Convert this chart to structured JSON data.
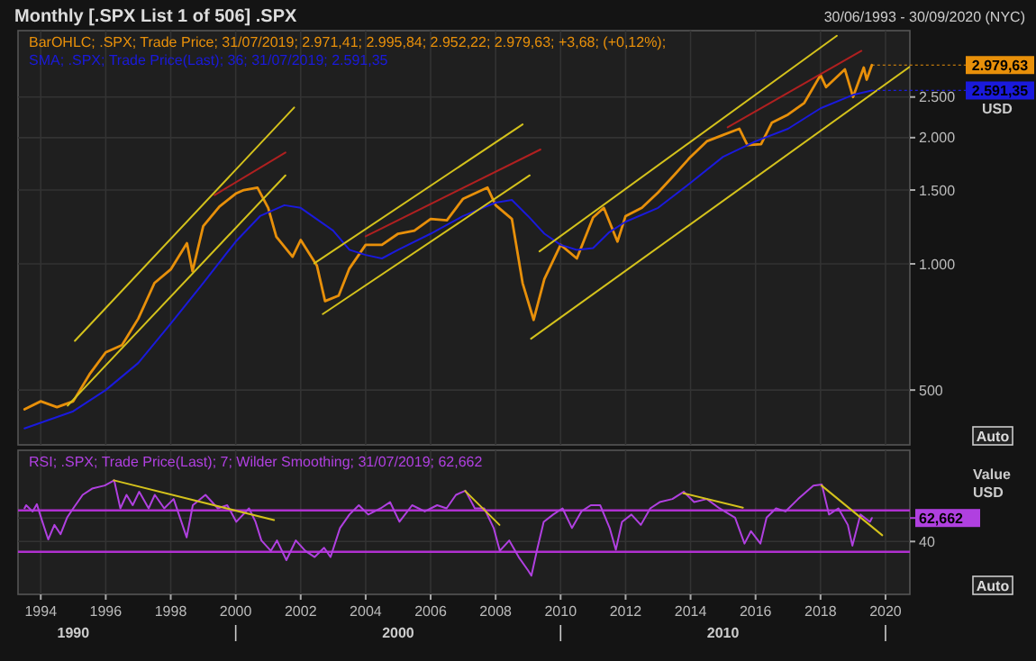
{
  "chart_data": [
    {
      "type": "line",
      "title": "Monthly [.SPX List 1 of 506] .SPX",
      "subtitle": "30/06/1993 - 30/09/2020 (NYC)",
      "log": true,
      "grid": true,
      "legend": "top left",
      "tick_labels": "y",
      "xlim": [
        1993.3,
        2020.75
      ],
      "xticks": [
        1994,
        1996,
        1998,
        2000,
        2002,
        2004,
        2006,
        2008,
        2010,
        2012,
        2014,
        2016,
        2018,
        2020
      ],
      "ylim": [
        370,
        3600
      ],
      "yticks": [
        500,
        {
          "value": 1000,
          "label": "1.000"
        },
        {
          "value": 1500,
          "label": "1.500"
        },
        {
          "value": 2000,
          "label": "2.000"
        },
        {
          "value": 2500,
          "label": "2.500"
        }
      ],
      "series": [
        {
          "name": "BarOHLC; .SPX; Trade Price; 31/07/2019; 2.971,41; 2.995,84; 2.952,22; 2.979,63; +3,68; (+0,12%);",
          "color": "#e8900a",
          "x": [
            1993.5,
            1994,
            1994.5,
            1995,
            1995.5,
            1996,
            1996.5,
            1997,
            1997.5,
            1998,
            1998.5,
            1998.67,
            1999,
            1999.5,
            2000,
            2000.25,
            2000.67,
            2001,
            2001.25,
            2001.75,
            2002,
            2002.5,
            2002.75,
            2003.17,
            2003.5,
            2004,
            2004.5,
            2005,
            2005.5,
            2006,
            2006.5,
            2007,
            2007.75,
            2008,
            2008.5,
            2008.83,
            2009.17,
            2009.5,
            2010,
            2010.5,
            2011,
            2011.33,
            2011.75,
            2012,
            2012.5,
            2013,
            2013.5,
            2014,
            2014.5,
            2015,
            2015.5,
            2015.75,
            2016.17,
            2016.5,
            2017,
            2017.5,
            2018,
            2018.17,
            2018.75,
            2019,
            2019.33,
            2019.42,
            2019.58
          ],
          "values": [
            450,
            470,
            455,
            470,
            545,
            615,
            640,
            740,
            900,
            970,
            1120,
            960,
            1230,
            1370,
            1470,
            1500,
            1520,
            1360,
            1160,
            1040,
            1140,
            990,
            815,
            840,
            975,
            1110,
            1110,
            1180,
            1200,
            1280,
            1270,
            1430,
            1520,
            1380,
            1280,
            900,
            735,
            920,
            1110,
            1030,
            1290,
            1360,
            1130,
            1300,
            1360,
            1480,
            1630,
            1800,
            1960,
            2030,
            2100,
            1920,
            1930,
            2170,
            2270,
            2420,
            2820,
            2640,
            2910,
            2500,
            2940,
            2750,
            2979.63
          ]
        },
        {
          "name": "SMA; .SPX; Trade Price(Last);  36; 31/07/2019; 2.591,35",
          "color": "#1a1adc",
          "x": [
            1993.5,
            1995,
            1996,
            1997,
            1998,
            1999,
            2000,
            2000.75,
            2001.5,
            2002,
            2003,
            2003.5,
            2004,
            2004.5,
            2005,
            2006,
            2007,
            2008,
            2008.5,
            2009,
            2009.5,
            2010,
            2010.5,
            2011,
            2011.5,
            2012,
            2013,
            2014,
            2015,
            2016,
            2017,
            2018,
            2019,
            2019.58
          ],
          "values": [
            405,
            445,
            500,
            580,
            720,
            900,
            1130,
            1300,
            1380,
            1360,
            1200,
            1080,
            1050,
            1030,
            1080,
            1180,
            1300,
            1400,
            1420,
            1300,
            1180,
            1110,
            1080,
            1090,
            1190,
            1260,
            1360,
            1560,
            1800,
            1960,
            2100,
            2350,
            2530,
            2591.35
          ]
        },
        {
          "color": "#d4c21c",
          "x": [
            1995.05,
            2001.8
          ],
          "values": [
            655,
            2360
          ]
        },
        {
          "color": "#d4c21c",
          "x": [
            1994.83,
            2001.53
          ],
          "values": [
            459,
            1626
          ]
        },
        {
          "color": "#b02020",
          "x": [
            1999.35,
            2001.53
          ],
          "values": [
            1459,
            1843
          ]
        },
        {
          "color": "#d4c21c",
          "x": [
            2002.42,
            2008.83
          ],
          "values": [
            1003,
            2151
          ]
        },
        {
          "color": "#d4c21c",
          "x": [
            2002.68,
            2009.05
          ],
          "values": [
            759,
            1626
          ]
        },
        {
          "color": "#b02020",
          "x": [
            2004,
            2009.38
          ],
          "values": [
            1163,
            1874
          ]
        },
        {
          "color": "#d4c21c",
          "x": [
            2009.35,
            2018.5
          ],
          "values": [
            1071,
            3500
          ]
        },
        {
          "color": "#d4c21c",
          "x": [
            2009.09,
            2020.74
          ],
          "values": [
            663,
            2950
          ]
        },
        {
          "color": "#b02020",
          "x": [
            2015.14,
            2019.26
          ],
          "values": [
            2117,
            3222
          ]
        }
      ],
      "annotations": [
        {
          "text": "2.979,63",
          "x": 2019.58,
          "y": 2979.63
        },
        {
          "text": "2.591,35",
          "x": 2019.58,
          "y": 2591.35
        },
        "USD",
        "Auto"
      ]
    },
    {
      "type": "line",
      "grid": true,
      "legend": "top left",
      "xlim": [
        1993.3,
        2020.75
      ],
      "xticks": [
        1994,
        1996,
        1998,
        2000,
        2002,
        2004,
        2006,
        2008,
        2010,
        2012,
        2014,
        2016,
        2018,
        2020
      ],
      "x2lim": [
        1988.3,
        2015.75
      ],
      "x2ticks": [
        1990,
        {
          "value": 1995,
          "label": null
        },
        2000,
        {
          "value": 2005,
          "label": null
        },
        2010,
        {
          "value": 2015,
          "label": null
        }
      ],
      "ylim": [
        -11,
        128
      ],
      "yticks": [
        40,
        {
          "value": 62.662,
          "label": "62,662"
        }
      ],
      "series": [
        {
          "name": "RSI; .SPX; Trade Price(Last);  7; Wilder Smoothing; 31/07/2019; 62,662",
          "color": "#b040e0",
          "x": [
            1993.5,
            1993.55,
            1993.75,
            1993.88,
            1994.03,
            1994.23,
            1994.42,
            1994.61,
            1994.81,
            1995,
            1995.29,
            1995.58,
            1995.97,
            1996.26,
            1996.45,
            1996.64,
            1996.83,
            1997.03,
            1997.32,
            1997.51,
            1997.8,
            1998.09,
            1998.49,
            1998.68,
            1999.07,
            1999.45,
            1999.74,
            2000.02,
            2000.41,
            2000.61,
            2000.79,
            2001.08,
            2001.27,
            2001.56,
            2001.85,
            2002.14,
            2002.43,
            2002.72,
            2002.92,
            2003.21,
            2003.5,
            2003.79,
            2004.08,
            2004.46,
            2004.75,
            2005.04,
            2005.43,
            2005.82,
            2006.2,
            2006.49,
            2006.78,
            2007.07,
            2007.36,
            2007.65,
            2007.94,
            2008.13,
            2008.42,
            2008.71,
            2009,
            2009.1,
            2009.29,
            2009.48,
            2009.77,
            2010.06,
            2010.35,
            2010.64,
            2010.93,
            2011.22,
            2011.51,
            2011.7,
            2011.89,
            2012.18,
            2012.47,
            2012.76,
            2013.05,
            2013.44,
            2013.79,
            2014.11,
            2014.5,
            2014.89,
            2015.37,
            2015.66,
            2015.86,
            2016.15,
            2016.34,
            2016.63,
            2016.92,
            2017.31,
            2017.78,
            2018.04,
            2018.26,
            2018.55,
            2018.84,
            2018.98,
            2019.23,
            2019.52,
            2019.58
          ],
          "values": [
            72,
            75,
            69,
            76,
            61,
            42,
            56,
            47,
            63,
            72,
            85,
            91,
            94,
            99,
            72,
            85,
            75,
            88,
            72,
            85,
            72,
            81,
            44,
            75,
            85,
            72,
            75,
            59,
            72,
            59,
            41,
            31,
            41,
            22,
            41,
            31,
            25,
            34,
            25,
            53,
            66,
            75,
            66,
            72,
            78,
            59,
            75,
            69,
            75,
            72,
            85,
            89,
            72,
            72,
            53,
            31,
            41,
            25,
            12,
            7,
            34,
            59,
            66,
            72,
            53,
            69,
            75,
            75,
            53,
            32,
            59,
            66,
            56,
            72,
            78,
            81,
            88,
            78,
            81,
            72,
            63,
            38,
            50,
            38,
            63,
            72,
            69,
            81,
            94,
            95,
            66,
            72,
            56,
            36,
            66,
            59,
            62.662
          ]
        },
        {
          "color": "#d4c21c",
          "x": [
            1996.25,
            2001.18
          ],
          "values": [
            99,
            60.6
          ]
        },
        {
          "color": "#d4c21c",
          "x": [
            2007.06,
            2008.12
          ],
          "values": [
            88.8,
            56
          ]
        },
        {
          "color": "#d4c21c",
          "x": [
            2013.78,
            2015.61
          ],
          "values": [
            86.5,
            72.7
          ]
        },
        {
          "color": "#d4c21c",
          "x": [
            2018.03,
            2019.9
          ],
          "values": [
            94,
            46
          ]
        }
      ],
      "ref_lines": [
        {
          "axis": "y",
          "value": 70,
          "color": "#b030d0"
        },
        {
          "axis": "y",
          "value": 30,
          "color": "#b030d0"
        }
      ],
      "annotations": [
        "Value",
        "USD",
        "Auto"
      ]
    }
  ]
}
